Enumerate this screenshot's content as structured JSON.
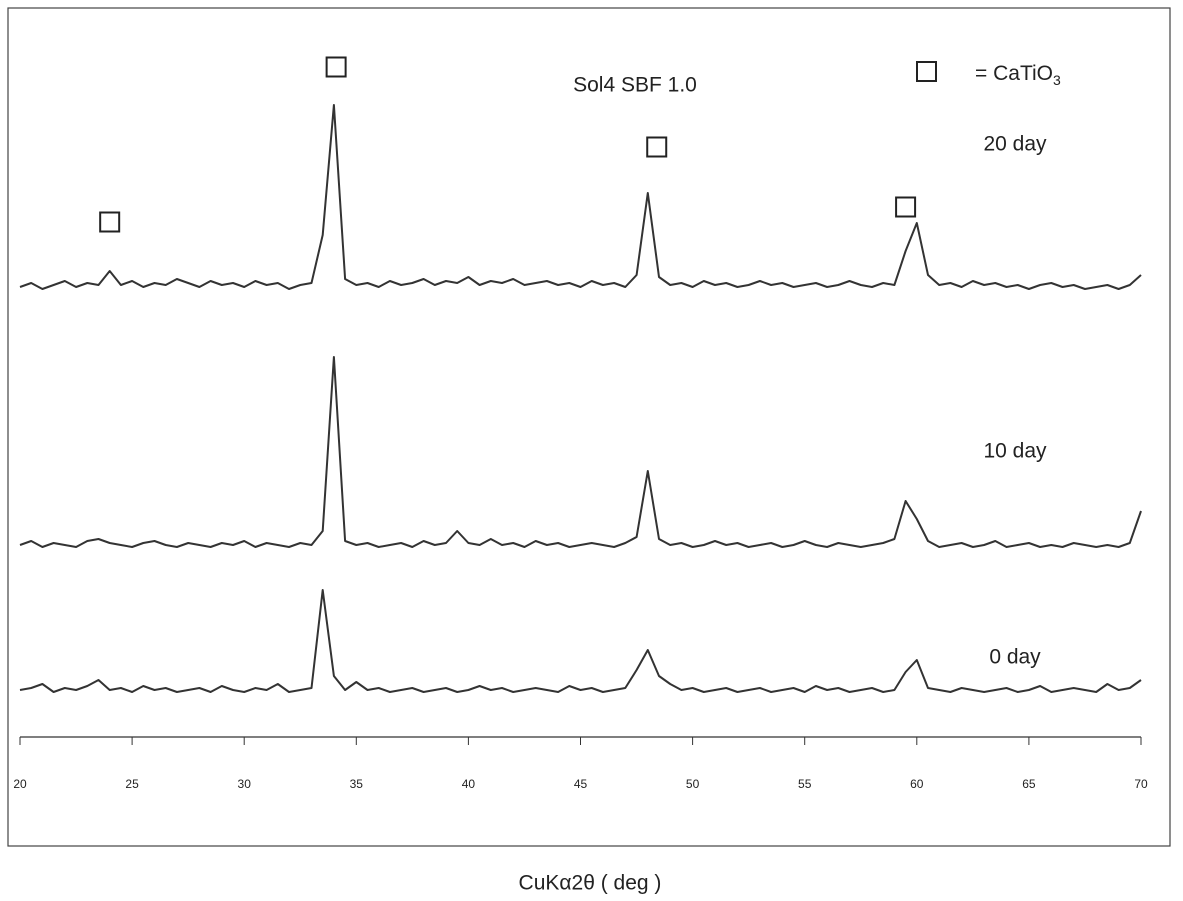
{
  "chart_data": {
    "type": "line",
    "title": "Sol4 SBF 1.0",
    "x_label": "CuKα2θ ( deg )",
    "marker_label": "= CaTiO",
    "marker_label_subscript": "3",
    "markers": [
      24.0,
      34.1,
      48.4,
      59.5
    ],
    "xlim": [
      20,
      70
    ],
    "xticks": [
      20,
      25,
      30,
      35,
      40,
      45,
      50,
      55,
      60,
      65,
      70
    ],
    "ylim": [
      0,
      100
    ],
    "color": "#333333",
    "x": [
      20,
      20.5,
      21,
      21.5,
      22,
      22.5,
      23,
      23.5,
      24,
      24.5,
      25,
      25.5,
      26,
      26.5,
      27,
      27.5,
      28,
      28.5,
      29,
      29.5,
      30,
      30.5,
      31,
      31.5,
      32,
      32.5,
      33,
      33.5,
      34,
      34.5,
      35,
      35.5,
      36,
      36.5,
      37,
      37.5,
      38,
      38.5,
      39,
      39.5,
      40,
      40.5,
      41,
      41.5,
      42,
      42.5,
      43,
      43.5,
      44,
      44.5,
      45,
      45.5,
      46,
      46.5,
      47,
      47.5,
      48,
      48.5,
      49,
      49.5,
      50,
      50.5,
      51,
      51.5,
      52,
      52.5,
      53,
      53.5,
      54,
      54.5,
      55,
      55.5,
      56,
      56.5,
      57,
      57.5,
      58,
      58.5,
      59,
      59.5,
      60,
      60.5,
      61,
      61.5,
      62,
      62.5,
      63,
      63.5,
      64,
      64.5,
      65,
      65.5,
      66,
      66.5,
      67,
      67.5,
      68,
      68.5,
      69,
      69.5,
      70
    ],
    "series": [
      {
        "name": "20 day",
        "values": [
          4,
          6,
          3,
          5,
          7,
          4,
          6,
          5,
          12,
          5,
          7,
          4,
          6,
          5,
          8,
          6,
          4,
          7,
          5,
          6,
          4,
          7,
          5,
          6,
          3,
          5,
          6,
          30,
          95,
          8,
          5,
          6,
          4,
          7,
          5,
          6,
          8,
          5,
          7,
          6,
          9,
          5,
          7,
          6,
          8,
          5,
          6,
          7,
          5,
          6,
          4,
          7,
          5,
          6,
          4,
          10,
          51,
          9,
          5,
          6,
          4,
          7,
          5,
          6,
          4,
          5,
          7,
          5,
          6,
          4,
          5,
          6,
          4,
          5,
          7,
          5,
          4,
          6,
          5,
          22,
          36,
          10,
          5,
          6,
          4,
          7,
          5,
          6,
          4,
          5,
          3,
          5,
          6,
          4,
          5,
          3,
          4,
          5,
          3,
          5,
          10
        ]
      },
      {
        "name": "10 day",
        "values": [
          5,
          7,
          4,
          6,
          5,
          4,
          7,
          8,
          6,
          5,
          4,
          6,
          7,
          5,
          4,
          6,
          5,
          4,
          6,
          5,
          7,
          4,
          6,
          5,
          4,
          6,
          5,
          12,
          99,
          7,
          5,
          6,
          4,
          5,
          6,
          4,
          7,
          5,
          6,
          12,
          6,
          5,
          8,
          5,
          6,
          4,
          7,
          5,
          6,
          4,
          5,
          6,
          5,
          4,
          6,
          9,
          42,
          8,
          5,
          6,
          4,
          5,
          7,
          5,
          6,
          4,
          5,
          6,
          4,
          5,
          7,
          5,
          4,
          6,
          5,
          4,
          5,
          6,
          8,
          27,
          18,
          7,
          4,
          5,
          6,
          4,
          5,
          7,
          4,
          5,
          6,
          4,
          5,
          4,
          6,
          5,
          4,
          5,
          4,
          6,
          22
        ]
      },
      {
        "name": "0 day",
        "values": [
          5,
          6,
          8,
          4,
          6,
          5,
          7,
          10,
          5,
          6,
          4,
          7,
          5,
          6,
          4,
          5,
          6,
          4,
          7,
          5,
          4,
          6,
          5,
          8,
          4,
          5,
          6,
          55,
          12,
          5,
          9,
          5,
          6,
          4,
          5,
          6,
          4,
          5,
          6,
          4,
          5,
          7,
          5,
          6,
          4,
          5,
          6,
          5,
          4,
          7,
          5,
          6,
          4,
          5,
          6,
          15,
          25,
          12,
          8,
          5,
          6,
          4,
          5,
          6,
          4,
          5,
          6,
          4,
          5,
          6,
          4,
          7,
          5,
          6,
          4,
          5,
          6,
          4,
          5,
          14,
          20,
          6,
          5,
          4,
          6,
          5,
          4,
          5,
          6,
          4,
          5,
          7,
          4,
          5,
          6,
          5,
          4,
          8,
          5,
          6,
          10
        ]
      }
    ]
  }
}
